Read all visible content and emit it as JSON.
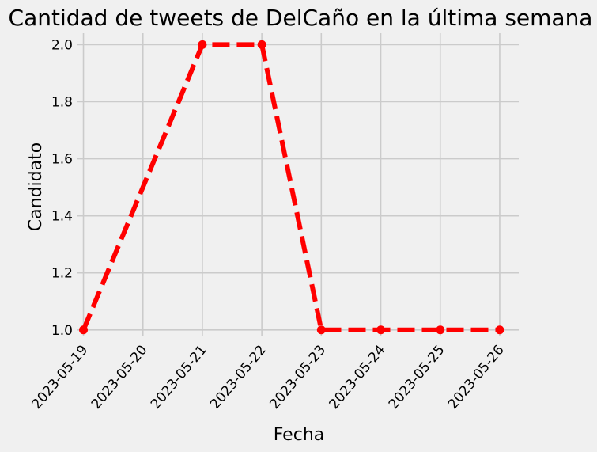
{
  "chart_data": {
    "type": "line",
    "title": "Cantidad de tweets de DelCaño en la última semana",
    "xlabel": "Fecha",
    "ylabel": "Candidato",
    "x": [
      "2023-05-19",
      "2023-05-20",
      "2023-05-21",
      "2023-05-22",
      "2023-05-23",
      "2023-05-24",
      "2023-05-25",
      "2023-05-26"
    ],
    "x_ticks": [
      "2023-05-19",
      "2023-05-20",
      "2023-05-21",
      "2023-05-22",
      "2023-05-23",
      "2023-05-24",
      "2023-05-25",
      "2023-05-26"
    ],
    "series": [
      {
        "x": [
          "2023-05-19",
          "2023-05-21",
          "2023-05-22",
          "2023-05-23",
          "2023-05-24",
          "2023-05-25",
          "2023-05-26"
        ],
        "values": [
          1,
          2,
          2,
          1,
          1,
          1,
          1
        ],
        "color": "#ff0000",
        "line_style": "dashed",
        "marker": "circle"
      }
    ],
    "y_ticks": [
      "1.0",
      "1.2",
      "1.4",
      "1.6",
      "1.8",
      "2.0"
    ],
    "ylim": [
      0.98,
      2.04
    ],
    "grid": true,
    "legend": "none",
    "tick_rotation": 50
  }
}
